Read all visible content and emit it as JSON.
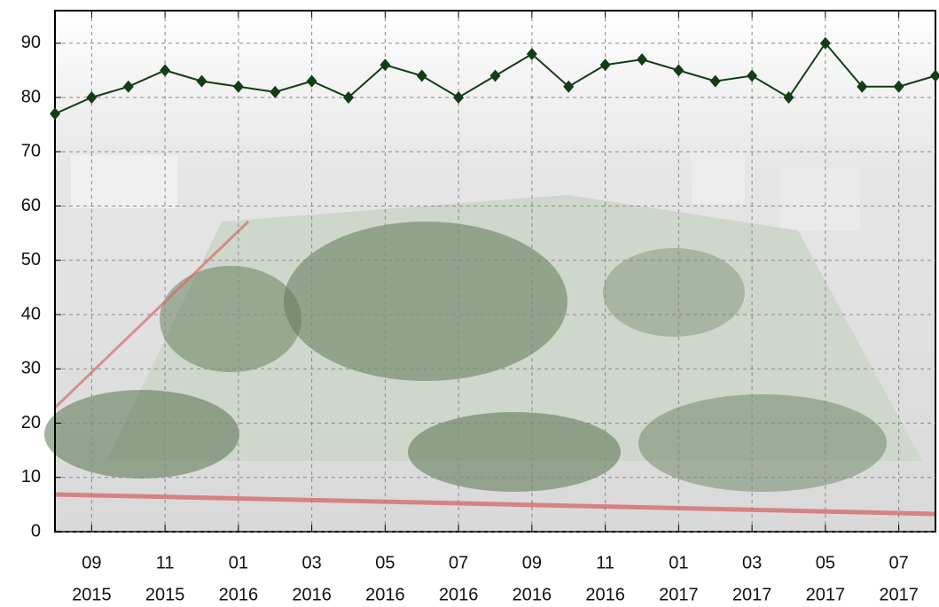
{
  "chart_data": {
    "type": "line",
    "color": "#123d16",
    "grid": true,
    "x": [
      "2015-08",
      "2015-09",
      "2015-10",
      "2015-11",
      "2015-12",
      "2016-01",
      "2016-02",
      "2016-03",
      "2016-04",
      "2016-05",
      "2016-06",
      "2016-07",
      "2016-08",
      "2016-09",
      "2016-10",
      "2016-11",
      "2016-12",
      "2017-01",
      "2017-02",
      "2017-03",
      "2017-04",
      "2017-05",
      "2017-06",
      "2017-07",
      "2017-08"
    ],
    "values": [
      77,
      80,
      82,
      85,
      83,
      82,
      81,
      83,
      80,
      86,
      84,
      80,
      84,
      88,
      82,
      86,
      87,
      85,
      83,
      84,
      80,
      90,
      82,
      82,
      84
    ],
    "xlim": [
      "2015-08",
      "2017-08"
    ],
    "xticks": [
      {
        "value": "2015-09",
        "label": [
          "09",
          "2015"
        ]
      },
      {
        "value": "2015-11",
        "label": [
          "11",
          "2015"
        ]
      },
      {
        "value": "2016-01",
        "label": [
          "01",
          "2016"
        ]
      },
      {
        "value": "2016-03",
        "label": [
          "03",
          "2016"
        ]
      },
      {
        "value": "2016-05",
        "label": [
          "05",
          "2016"
        ]
      },
      {
        "value": "2016-07",
        "label": [
          "07",
          "2016"
        ]
      },
      {
        "value": "2016-09",
        "label": [
          "09",
          "2016"
        ]
      },
      {
        "value": "2016-11",
        "label": [
          "11",
          "2016"
        ]
      },
      {
        "value": "2017-01",
        "label": [
          "01",
          "2017"
        ]
      },
      {
        "value": "2017-03",
        "label": [
          "03",
          "2017"
        ]
      },
      {
        "value": "2017-05",
        "label": [
          "05",
          "2017"
        ]
      },
      {
        "value": "2017-07",
        "label": [
          "07",
          "2017"
        ]
      }
    ],
    "ylim": [
      0,
      96
    ],
    "yticks": [
      0,
      10,
      20,
      30,
      40,
      50,
      60,
      70,
      80,
      90
    ]
  }
}
